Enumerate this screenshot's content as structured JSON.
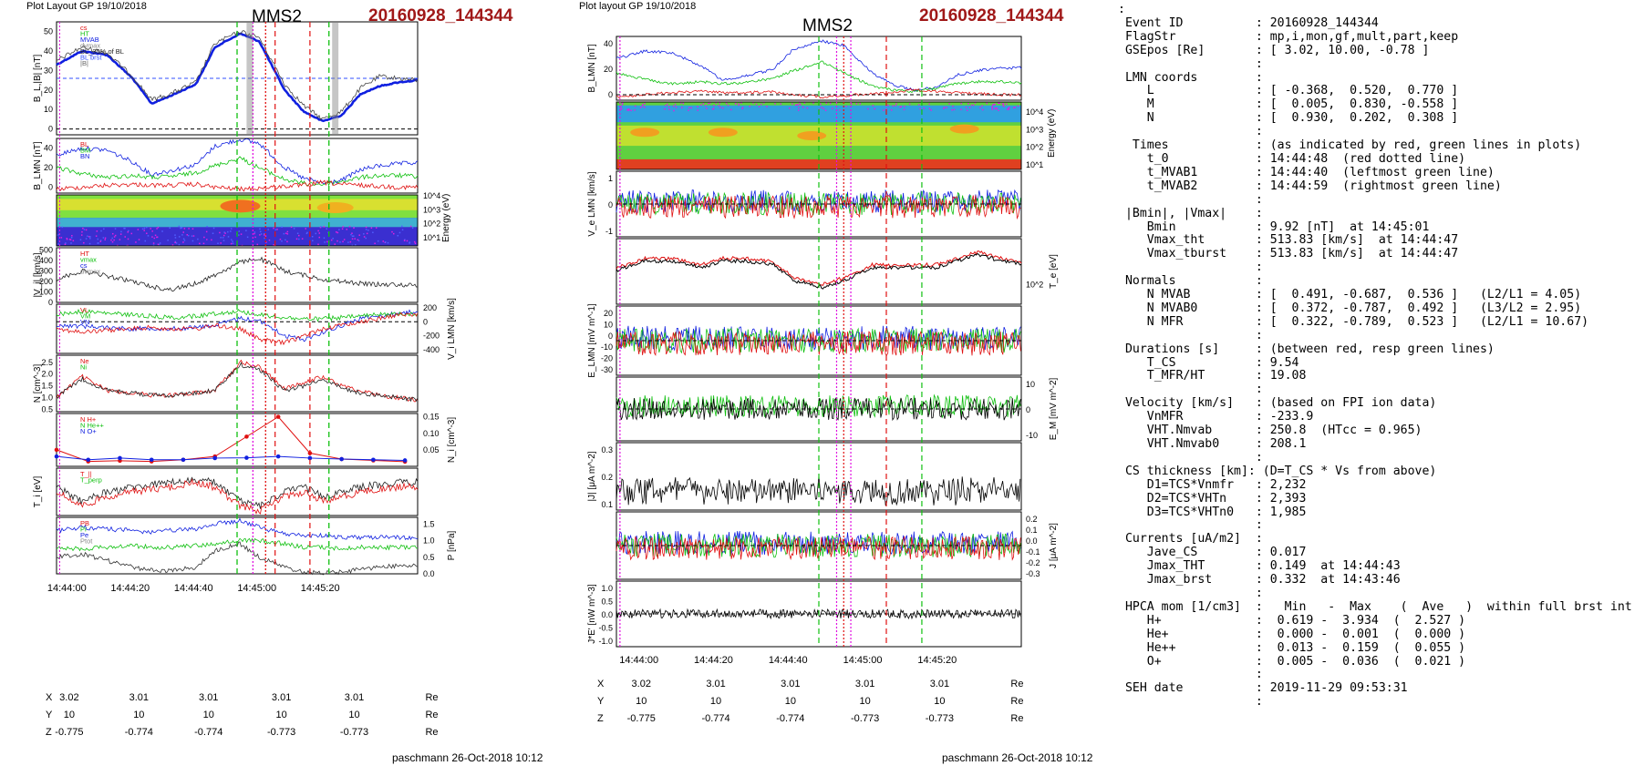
{
  "left": {
    "header": "Plot Layout GP 19/10/2018",
    "mms": "MMS2",
    "event": "20160928_144344",
    "footer": "paschmann 26-Oct-2018 10:12",
    "time_labels": [
      "14:44:00",
      "14:44:20",
      "14:44:40",
      "14:45:00",
      "14:45:20"
    ],
    "coords": {
      "X": [
        "3.02",
        "3.01",
        "3.01",
        "3.01",
        "3.01"
      ],
      "Y": [
        "10",
        "10",
        "10",
        "10",
        "10"
      ],
      "Z": [
        "-0.775",
        "-0.774",
        "-0.774",
        "-0.773",
        "-0.773"
      ],
      "unit": "Re"
    }
  },
  "middle": {
    "header": "Plot layout GP 19/10/2018",
    "mms": "MMS2",
    "event": "20160928_144344",
    "footer": "paschmann 26-Oct-2018 10:12",
    "time_labels": [
      "14:44:00",
      "14:44:20",
      "14:44:40",
      "14:45:00",
      "14:45:20"
    ],
    "coords": {
      "X": [
        "3.02",
        "3.01",
        "3.01",
        "3.01",
        "3.01"
      ],
      "Y": [
        "10",
        "10",
        "10",
        "10",
        "10"
      ],
      "Z": [
        "-0.775",
        "-0.774",
        "-0.774",
        "-0.773",
        "-0.773"
      ],
      "unit": "Re"
    }
  },
  "colors": {
    "title_event": "#a01818",
    "red": "#e01010",
    "green": "#10c010",
    "blue": "#1020e0",
    "magenta": "#e010e0"
  },
  "chart_data": [
    {
      "type": "line",
      "panel": "B_L,|B|",
      "ylabel": "B_L,|B| [nT]",
      "yticks": [
        "0",
        "10",
        "20",
        "30",
        "40",
        "50"
      ],
      "ylim": [
        -3,
        55
      ],
      "legend": [
        "cs",
        "HT",
        "MVAB",
        "dvmax",
        "BL_30% of BL",
        "BL brst",
        "|B|"
      ],
      "x": [
        0,
        8,
        16,
        24,
        30,
        36,
        44,
        50,
        58,
        64,
        72,
        78,
        84,
        90,
        96,
        102,
        108,
        114
      ],
      "series": [
        {
          "name": "BL",
          "values": [
            33,
            40,
            38,
            26,
            13,
            17,
            23,
            42,
            49,
            45,
            20,
            9,
            4,
            7,
            18,
            22,
            24,
            25
          ]
        },
        {
          "name": "|B|",
          "values": [
            35,
            42,
            39,
            27,
            15,
            18,
            24,
            44,
            50,
            47,
            23,
            12,
            5,
            9,
            21,
            27,
            26,
            25
          ]
        }
      ],
      "hlines": [
        26,
        0
      ]
    },
    {
      "type": "line",
      "panel": "B_LMN",
      "ylabel": "B_LMN [nT]",
      "yticks": [
        "0",
        "20",
        "40"
      ],
      "ylim": [
        -6,
        50
      ],
      "legend": [
        "BL",
        "BM",
        "BN"
      ],
      "x": [
        0,
        8,
        16,
        24,
        30,
        36,
        44,
        50,
        58,
        64,
        72,
        78,
        84,
        90,
        96,
        102,
        108,
        114
      ],
      "series": [
        {
          "name": "BL",
          "values": [
            33,
            40,
            38,
            26,
            13,
            17,
            23,
            42,
            49,
            45,
            20,
            9,
            4,
            7,
            18,
            22,
            24,
            25
          ]
        },
        {
          "name": "BM",
          "values": [
            20,
            14,
            10,
            12,
            10,
            11,
            15,
            22,
            30,
            20,
            8,
            4,
            3,
            6,
            10,
            12,
            12,
            11
          ]
        },
        {
          "name": "BN",
          "values": [
            -2,
            0,
            2,
            3,
            2,
            2,
            3,
            0,
            -2,
            -1,
            1,
            2,
            5,
            3,
            2,
            1,
            0,
            0
          ]
        }
      ]
    },
    {
      "type": "heatmap",
      "panel": "ion energy spectrogram",
      "ylabel": "Energy (eV)",
      "yticks": [
        "10^1",
        "10^2",
        "10^3",
        "10^4"
      ]
    },
    {
      "type": "line",
      "panel": "|Vi|",
      "ylabel": "|V_i| [km/s]",
      "yticks": [
        "0",
        "100",
        "200",
        "300",
        "400",
        "500"
      ],
      "ylim": [
        0,
        520
      ],
      "legend": [
        "HT",
        "vmax",
        "cs",
        "dvmax"
      ],
      "x": [
        0,
        8,
        16,
        24,
        30,
        36,
        44,
        50,
        58,
        64,
        72,
        78,
        84,
        90,
        96,
        102,
        108,
        114
      ],
      "series": [
        {
          "name": "|Vi|",
          "values": [
            220,
            300,
            250,
            200,
            150,
            120,
            180,
            260,
            380,
            420,
            300,
            260,
            220,
            200,
            180,
            170,
            170,
            160
          ]
        }
      ]
    },
    {
      "type": "line",
      "panel": "V_i LMN",
      "ylabel": "V_i LMN [km/s]",
      "yticks": [
        "200",
        "0",
        "-200",
        "-400"
      ],
      "ylim": [
        -450,
        250
      ],
      "legend": [
        "VL",
        "VM",
        "VN"
      ],
      "x": [
        0,
        8,
        16,
        24,
        30,
        36,
        44,
        50,
        58,
        64,
        72,
        78,
        84,
        90,
        96,
        102,
        108,
        114
      ],
      "series": [
        {
          "name": "VL",
          "values": [
            -50,
            -60,
            -80,
            -100,
            -90,
            -100,
            -80,
            -50,
            50,
            20,
            -200,
            -250,
            -150,
            -50,
            50,
            80,
            120,
            150
          ]
        },
        {
          "name": "VM",
          "values": [
            100,
            150,
            120,
            100,
            80,
            60,
            80,
            120,
            150,
            100,
            60,
            40,
            40,
            60,
            80,
            100,
            110,
            120
          ]
        },
        {
          "name": "VN",
          "values": [
            -100,
            -150,
            -120,
            -100,
            -80,
            -100,
            -100,
            -50,
            -100,
            -250,
            -300,
            -200,
            -100,
            -50,
            0,
            50,
            100,
            100
          ]
        }
      ],
      "hlines": [
        0
      ]
    },
    {
      "type": "line",
      "panel": "N",
      "ylabel": "N [cm^-3]",
      "yticks": [
        "0.5",
        "1.0",
        "1.5",
        "2.0",
        "2.5"
      ],
      "ylim": [
        0.4,
        2.8
      ],
      "legend": [
        "Ne",
        "Ni"
      ],
      "x": [
        0,
        8,
        16,
        24,
        30,
        36,
        44,
        50,
        58,
        64,
        72,
        78,
        84,
        90,
        96,
        102,
        108,
        114
      ],
      "series": [
        {
          "name": "Ne",
          "values": [
            1.0,
            1.9,
            1.3,
            1.2,
            1.1,
            1.1,
            1.2,
            1.3,
            2.5,
            2.3,
            1.4,
            1.6,
            1.9,
            1.5,
            1.3,
            1.1,
            1.0,
            0.9
          ]
        },
        {
          "name": "Ni",
          "values": [
            1.0,
            1.8,
            1.3,
            1.2,
            1.1,
            1.1,
            1.2,
            1.3,
            2.4,
            2.2,
            1.3,
            1.5,
            1.8,
            1.4,
            1.2,
            1.1,
            1.0,
            0.9
          ]
        }
      ]
    },
    {
      "type": "line",
      "panel": "N_i HPCA",
      "ylabel": "N_i [cm^-3]",
      "yticks": [
        "0.05",
        "0.10",
        "0.15"
      ],
      "ylim": [
        0,
        0.16
      ],
      "legend": [
        "N H+",
        "N He++",
        "N O+"
      ],
      "x": [
        0,
        10,
        20,
        30,
        40,
        50,
        60,
        70,
        80,
        90,
        100,
        110
      ],
      "series": [
        {
          "name": "N He++",
          "values": [
            0.05,
            0.015,
            0.017,
            0.015,
            0.02,
            0.03,
            0.09,
            0.15,
            0.04,
            0.022,
            0.018,
            0.014
          ]
        },
        {
          "name": "N O+",
          "values": [
            0.03,
            0.02,
            0.025,
            0.02,
            0.02,
            0.025,
            0.026,
            0.03,
            0.025,
            0.022,
            0.02,
            0.018
          ]
        }
      ]
    },
    {
      "type": "line",
      "panel": "T_i",
      "ylabel": "T_i [eV]",
      "legend": [
        "T_||",
        "T_perp"
      ],
      "x": [
        0,
        8,
        16,
        24,
        30,
        36,
        44,
        50,
        58,
        64,
        72,
        78,
        84,
        90,
        96,
        102,
        108,
        114
      ],
      "series": [
        {
          "name": "T_||",
          "values": [
            0.6,
            0.3,
            0.5,
            0.6,
            0.65,
            0.7,
            0.75,
            0.7,
            0.3,
            0.2,
            0.5,
            0.6,
            0.4,
            0.5,
            0.6,
            0.65,
            0.7,
            0.7
          ]
        },
        {
          "name": "T_perp",
          "values": [
            0.5,
            0.2,
            0.4,
            0.5,
            0.55,
            0.6,
            0.7,
            0.6,
            0.2,
            0.1,
            0.4,
            0.5,
            0.3,
            0.4,
            0.5,
            0.55,
            0.6,
            0.6
          ]
        }
      ]
    },
    {
      "type": "line",
      "panel": "P",
      "ylabel": "P [nPa]",
      "yticks": [
        "0.0",
        "0.5",
        "1.0",
        "1.5"
      ],
      "ylim": [
        0,
        1.7
      ],
      "legend": [
        "PB",
        "Pi",
        "Pe",
        "Ptot"
      ],
      "x": [
        0,
        8,
        16,
        24,
        30,
        36,
        44,
        50,
        58,
        64,
        72,
        78,
        84,
        90,
        96,
        102,
        108,
        114
      ],
      "series": [
        {
          "name": "Ptot",
          "values": [
            1.3,
            1.4,
            1.35,
            1.3,
            1.25,
            1.3,
            1.35,
            1.5,
            1.6,
            1.4,
            1.2,
            1.15,
            1.15,
            1.1,
            1.1,
            1.1,
            1.1,
            1.05
          ]
        },
        {
          "name": "Pi",
          "values": [
            0.8,
            0.75,
            0.8,
            0.85,
            0.8,
            0.8,
            0.85,
            0.9,
            1.0,
            1.0,
            0.9,
            0.8,
            0.8,
            0.75,
            0.8,
            0.8,
            0.8,
            0.8
          ]
        },
        {
          "name": "PB",
          "values": [
            0.5,
            0.6,
            0.4,
            0.2,
            0.1,
            0.1,
            0.2,
            0.7,
            0.9,
            0.5,
            0.2,
            0.05,
            0.02,
            0.05,
            0.15,
            0.2,
            0.25,
            0.25
          ]
        }
      ]
    }
  ],
  "summary_lines": [
    ":",
    " Event ID          : 20160928_144344",
    " FlagStr           : mp,i,mon,gf,mult,part,keep",
    " GSEpos [Re]       : [ 3.02, 10.00, -0.78 ]",
    "                   :",
    " LMN coords        :",
    "    L              : [ -0.368,  0.520,  0.770 ]",
    "    M              : [  0.005,  0.830, -0.558 ]",
    "    N              : [  0.930,  0.202,  0.308 ]",
    "                   :",
    "  Times            : (as indicated by red, green lines in plots)",
    "    t_0            : 14:44:48  (red dotted line)",
    "    t_MVAB1        : 14:44:40  (leftmost green line)",
    "    t_MVAB2        : 14:44:59  (rightmost green line)",
    "                   :",
    " |Bmin|, |Vmax|    :",
    "    Bmin           : 9.92 [nT]  at 14:45:01",
    "    Vmax_tht       : 513.83 [km/s]  at 14:44:47",
    "    Vmax_tburst    : 513.83 [km/s]  at 14:44:47",
    "                   :",
    " Normals           :",
    "    N MVAB         : [  0.491, -0.687,  0.536 ]   (L2/L1 = 4.05)",
    "    N MVAB0        : [  0.372, -0.787,  0.492 ]   (L3/L2 = 2.95)",
    "    N MFR          : [  0.322, -0.789,  0.523 ]   (L2/L1 = 10.67)",
    "                   :",
    " Durations [s]     : (between red, resp green lines)",
    "    T_CS           : 9.54",
    "    T_MFR/HT       : 19.08",
    "                   :",
    " Velocity [km/s]   : (based on FPI ion data)",
    "    VnMFR          : -233.9",
    "    VHT.Nmvab      : 250.8  (HTcc = 0.965)",
    "    VHT.Nmvab0     : 208.1",
    "                   :",
    " CS thickness [km]: (D=T_CS * Vs from above)",
    "    D1=TCS*Vnmfr   : 2,232",
    "    D2=TCS*VHTn    : 2,393",
    "    D3=TCS*VHTn0   : 1,985",
    "                   :",
    " Currents [uA/m2]  :",
    "    Jave_CS        : 0.017",
    "    Jmax_THT       : 0.149  at 14:44:43",
    "    Jmax_brst      : 0.332  at 14:43:46",
    "                   :",
    " HPCA mom [1/cm3]  :   Min   -  Max    (  Ave   )  within full brst int",
    "    H+             :  0.619 -  3.934  (  2.527 )",
    "    He+            :  0.000 -  0.001  (  0.000 )",
    "    He++           :  0.013 -  0.159  (  0.055 )",
    "    O+             :  0.005 -  0.036  (  0.021 )",
    "                   :",
    " SEH date          : 2019-11-29 09:53:31",
    "                   :"
  ]
}
